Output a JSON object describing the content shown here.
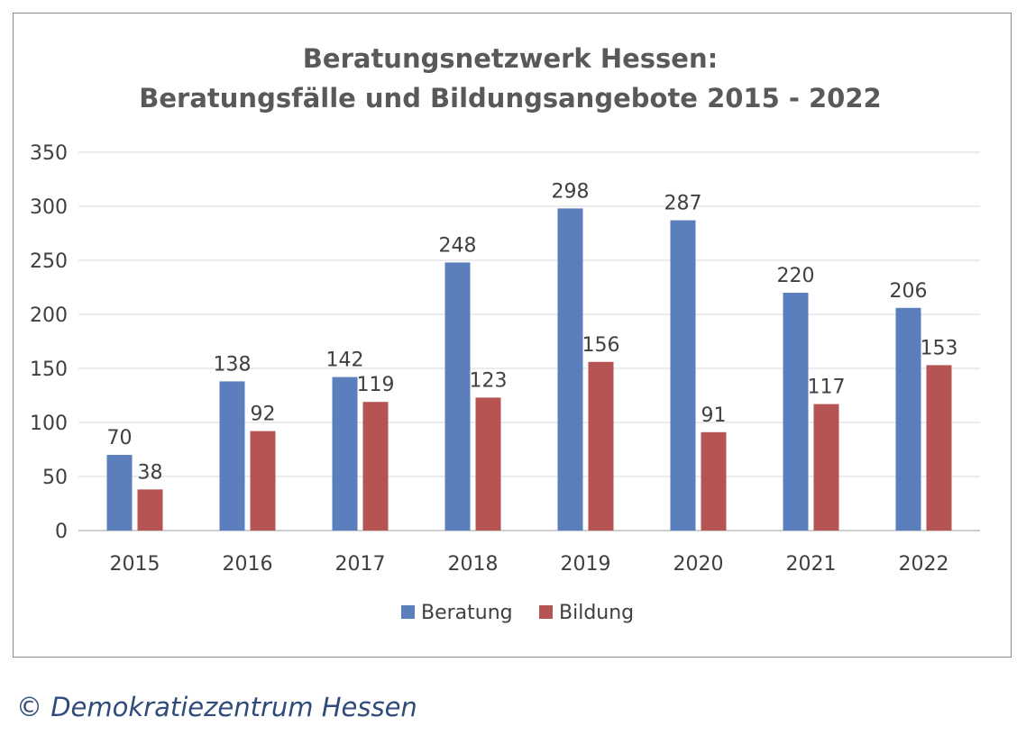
{
  "chart_data": {
    "type": "bar",
    "title_lines": [
      "Beratungsnetzwerk Hessen:",
      "Beratungsfälle und Bildungsangebote 2015 - 2022"
    ],
    "categories": [
      "2015",
      "2016",
      "2017",
      "2018",
      "2019",
      "2020",
      "2021",
      "2022"
    ],
    "series": [
      {
        "name": "Beratung",
        "color": "#5b7fbc",
        "values": [
          70,
          138,
          142,
          248,
          298,
          287,
          220,
          206
        ]
      },
      {
        "name": "Bildung",
        "color": "#b55452",
        "values": [
          38,
          92,
          119,
          123,
          156,
          91,
          117,
          153
        ]
      }
    ],
    "ylim": [
      0,
      350
    ],
    "yticks": [
      0,
      50,
      100,
      150,
      200,
      250,
      300,
      350
    ],
    "grid": true,
    "legend": "bottom",
    "data_labels": true
  },
  "footer": {
    "copyright": "© Demokratiezentrum Hessen"
  }
}
